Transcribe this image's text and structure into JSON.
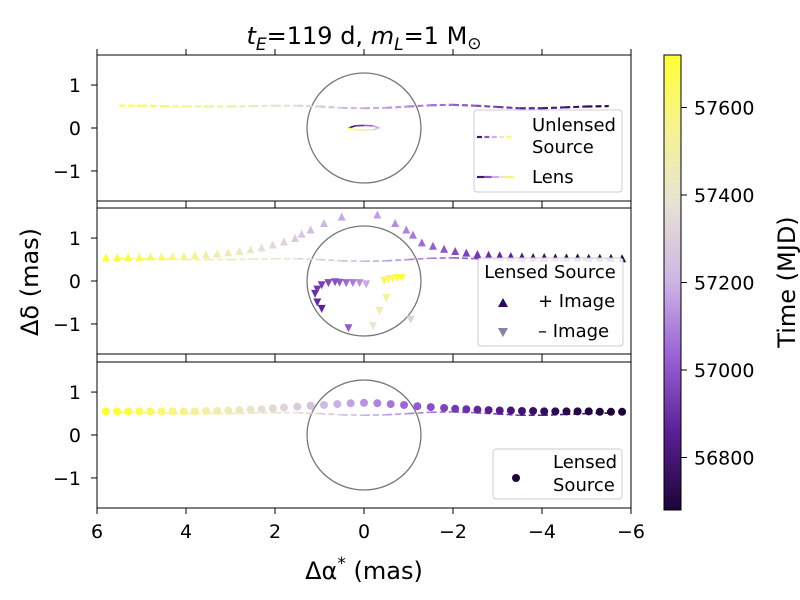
{
  "chart_data": {
    "type": "scatter",
    "title": {
      "t_sym": "t",
      "t_sub": "E",
      "t_rest": "=119 d, ",
      "m_sym": "m",
      "m_sub": "L",
      "m_rest": "=1 M",
      "sun_symbol": "⊙"
    },
    "xlabel": {
      "delta": "Δα",
      "star": "*",
      "unit": " (mas)"
    },
    "ylabel": "Δδ (mas)",
    "xlim": [
      6,
      -6
    ],
    "ylim": [
      -1.7,
      1.7
    ],
    "xticks": [
      6,
      4,
      2,
      0,
      -2,
      -4,
      -6
    ],
    "xtick_labels": [
      "6",
      "4",
      "2",
      "0",
      "−2",
      "−4",
      "−6"
    ],
    "yticks": [
      1,
      0,
      -1
    ],
    "ytick_labels": [
      "1",
      "0",
      "−1"
    ],
    "einstein_radius_mas": 1.28,
    "time_range_mjd": [
      56680,
      57720
    ],
    "colorbar": {
      "label": "Time (MJD)",
      "ticks": [
        56800,
        57000,
        57200,
        57400,
        57600
      ],
      "tick_labels": [
        "56800",
        "57000",
        "57200",
        "57400",
        "57600"
      ],
      "colors": [
        "#1b0436",
        "#5a1f94",
        "#9a63d6",
        "#cdb4e4",
        "#e8e4d2",
        "#f7f38c",
        "#ffff33"
      ]
    },
    "unlensed_source_track": {
      "x": [
        5.5,
        5.0,
        4.5,
        4.0,
        3.5,
        3.0,
        2.5,
        2.0,
        1.5,
        1.0,
        0.5,
        0.0,
        -0.5,
        -1.0,
        -1.5,
        -2.0,
        -2.5,
        -3.0,
        -3.5,
        -4.0,
        -4.5,
        -5.0,
        -5.5
      ],
      "y": [
        0.52,
        0.52,
        0.51,
        0.5,
        0.5,
        0.5,
        0.51,
        0.52,
        0.52,
        0.5,
        0.47,
        0.46,
        0.47,
        0.5,
        0.53,
        0.54,
        0.52,
        0.49,
        0.46,
        0.46,
        0.48,
        0.5,
        0.51
      ],
      "t": [
        57700,
        57655,
        57610,
        57565,
        57520,
        57475,
        57430,
        57385,
        57340,
        57295,
        57250,
        57205,
        57160,
        57115,
        57070,
        57025,
        56980,
        56935,
        56890,
        56845,
        56800,
        56755,
        56710
      ]
    },
    "lens_track": {
      "x": [
        0.35,
        0.2,
        0.0,
        -0.2,
        -0.35,
        -0.2,
        0.0,
        0.2,
        0.35
      ],
      "y": [
        0.0,
        0.05,
        0.06,
        0.05,
        0.0,
        -0.04,
        -0.05,
        -0.04,
        0.0
      ],
      "t": [
        56700,
        56830,
        56960,
        57090,
        57220,
        57350,
        57480,
        57610,
        57700
      ]
    },
    "plus_image": {
      "x": [
        5.8,
        5.55,
        5.3,
        5.05,
        4.8,
        4.55,
        4.3,
        4.05,
        3.8,
        3.55,
        3.3,
        3.05,
        2.8,
        2.55,
        2.3,
        2.05,
        1.8,
        1.55,
        1.4,
        1.2,
        0.9,
        0.5,
        -0.3,
        -0.7,
        -0.95,
        -1.1,
        -1.3,
        -1.55,
        -1.8,
        -2.05,
        -2.3,
        -2.55,
        -2.8,
        -3.05,
        -3.3,
        -3.55,
        -3.8,
        -4.05,
        -4.3,
        -4.55,
        -4.8,
        -5.05,
        -5.3,
        -5.55,
        -5.8
      ],
      "y": [
        0.55,
        0.56,
        0.56,
        0.56,
        0.57,
        0.57,
        0.58,
        0.58,
        0.6,
        0.62,
        0.64,
        0.67,
        0.7,
        0.74,
        0.78,
        0.85,
        0.92,
        1.0,
        1.1,
        1.2,
        1.35,
        1.5,
        1.55,
        1.35,
        1.2,
        1.08,
        0.9,
        0.82,
        0.75,
        0.7,
        0.66,
        0.63,
        0.61,
        0.6,
        0.58,
        0.57,
        0.56,
        0.56,
        0.55,
        0.55,
        0.55,
        0.54,
        0.54,
        0.54,
        0.53
      ],
      "t": [
        57710,
        57685,
        57660,
        57635,
        57610,
        57585,
        57560,
        57535,
        57510,
        57485,
        57460,
        57435,
        57410,
        57385,
        57360,
        57335,
        57310,
        57285,
        57260,
        57235,
        57210,
        57180,
        57150,
        57120,
        57095,
        57070,
        57045,
        57020,
        56995,
        56970,
        56945,
        56920,
        56895,
        56870,
        56845,
        56820,
        56795,
        56770,
        56745,
        56720,
        56705,
        56695,
        56690,
        56686,
        56682
      ]
    },
    "minus_image": {
      "x": [
        -0.85,
        -0.75,
        -0.65,
        -0.55,
        -0.45,
        -0.5,
        -0.35,
        -0.2,
        -0.05,
        0.1,
        0.25,
        0.4,
        0.55,
        0.65,
        0.8,
        0.95,
        1.05,
        1.1,
        1.05,
        0.95,
        0.35,
        -1.05
      ],
      "y": [
        0.07,
        0.07,
        0.05,
        0.04,
        0.0,
        -0.4,
        -0.7,
        -1.05,
        -0.08,
        -0.05,
        -0.05,
        -0.05,
        -0.04,
        -0.03,
        -0.05,
        -0.1,
        -0.2,
        -0.3,
        -0.5,
        -0.65,
        -1.1,
        -0.9
      ],
      "t": [
        57700,
        57680,
        57660,
        57640,
        57620,
        57520,
        57460,
        57380,
        57180,
        57120,
        57080,
        57040,
        57000,
        56980,
        56960,
        56940,
        56920,
        56900,
        56880,
        56860,
        57000,
        57300
      ]
    },
    "lensed_source": {
      "x": [
        5.8,
        5.55,
        5.3,
        5.05,
        4.8,
        4.55,
        4.3,
        4.05,
        3.8,
        3.55,
        3.3,
        3.05,
        2.8,
        2.55,
        2.3,
        2.05,
        1.8,
        1.5,
        1.2,
        0.9,
        0.6,
        0.3,
        0.0,
        -0.3,
        -0.6,
        -0.9,
        -1.2,
        -1.5,
        -1.8,
        -2.05,
        -2.3,
        -2.55,
        -2.8,
        -3.05,
        -3.3,
        -3.55,
        -3.8,
        -4.05,
        -4.3,
        -4.55,
        -4.8,
        -5.05,
        -5.3,
        -5.55,
        -5.8
      ],
      "y": [
        0.55,
        0.55,
        0.55,
        0.55,
        0.55,
        0.55,
        0.55,
        0.55,
        0.55,
        0.56,
        0.56,
        0.57,
        0.58,
        0.59,
        0.6,
        0.62,
        0.64,
        0.66,
        0.68,
        0.7,
        0.72,
        0.74,
        0.75,
        0.74,
        0.72,
        0.7,
        0.67,
        0.65,
        0.63,
        0.61,
        0.6,
        0.59,
        0.58,
        0.57,
        0.57,
        0.56,
        0.56,
        0.55,
        0.55,
        0.55,
        0.55,
        0.55,
        0.54,
        0.54,
        0.54
      ],
      "t": [
        57710,
        57685,
        57660,
        57635,
        57610,
        57585,
        57560,
        57535,
        57510,
        57485,
        57460,
        57435,
        57410,
        57385,
        57360,
        57335,
        57310,
        57280,
        57250,
        57220,
        57190,
        57160,
        57130,
        57100,
        57070,
        57040,
        57010,
        56980,
        56950,
        56925,
        56900,
        56875,
        56850,
        56825,
        56800,
        56780,
        56760,
        56745,
        56730,
        56718,
        56708,
        56700,
        56693,
        56687,
        56682
      ]
    },
    "legends": {
      "panel1": {
        "unlensed_line1": "Unlensed",
        "unlensed_line2": "Source",
        "lens": "Lens"
      },
      "panel2": {
        "title": "Lensed Source",
        "plus": "+ Image",
        "minus": "– Image"
      },
      "panel3": {
        "line1": "Lensed",
        "line2": "Source"
      }
    }
  }
}
